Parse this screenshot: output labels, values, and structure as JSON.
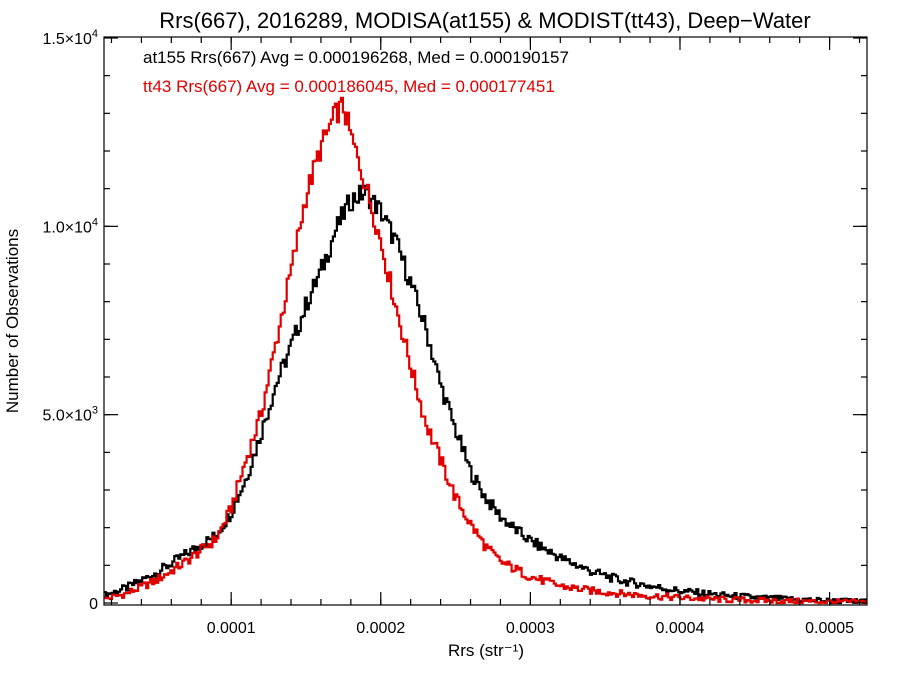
{
  "chart_data": {
    "type": "line",
    "title": "Rrs(667), 2016289, MODISA(at155) & MODIST(tt43), Deep−Water",
    "xlabel": "Rrs (str⁻¹)",
    "ylabel": "Number of Observations",
    "xlim": [
      1.5e-05,
      0.000525
    ],
    "ylim": [
      0,
      15000
    ],
    "x_ticks": [
      0.0001,
      0.0002,
      0.0003,
      0.0004,
      0.0005
    ],
    "x_tick_labels": [
      "0.0001",
      "0.0002",
      "0.0003",
      "0.0004",
      "0.0005"
    ],
    "y_ticks": [
      0,
      5000,
      10000,
      15000
    ],
    "y_tick_labels": [
      {
        "mantissa": "0",
        "exp": ""
      },
      {
        "mantissa": "5.0×10",
        "exp": "3"
      },
      {
        "mantissa": "1.0×10",
        "exp": "4"
      },
      {
        "mantissa": "1.5×10",
        "exp": "4"
      }
    ],
    "grid": false,
    "series": [
      {
        "name": "at155",
        "label": "at155 Rrs(667) Avg = 0.000196268, Med = 0.000190157",
        "color": "#000000",
        "x": [
          1.5e-05,
          3e-05,
          5e-05,
          7e-05,
          9e-05,
          0.0001,
          0.00011,
          0.00012,
          0.00013,
          0.00014,
          0.00015,
          0.00016,
          0.00017,
          0.00018,
          0.00019,
          0.0002,
          0.00021,
          0.00022,
          0.00023,
          0.00024,
          0.00025,
          0.00026,
          0.00027,
          0.00028,
          0.00029,
          0.0003,
          0.00032,
          0.00034,
          0.00036,
          0.00038,
          0.0004,
          0.00043,
          0.00046,
          0.0005,
          0.000525
        ],
        "y": [
          200,
          400,
          800,
          1300,
          1800,
          2400,
          3300,
          4500,
          5800,
          6800,
          7900,
          8800,
          9900,
          10700,
          10900,
          10400,
          9600,
          8500,
          7300,
          5800,
          4600,
          3500,
          2800,
          2300,
          1950,
          1650,
          1200,
          850,
          600,
          450,
          320,
          200,
          120,
          60,
          30
        ]
      },
      {
        "name": "tt43",
        "label": "tt43 Rrs(667) Avg = 0.000186045, Med = 0.000177451",
        "color": "#e00000",
        "x": [
          1.5e-05,
          3e-05,
          5e-05,
          7e-05,
          9e-05,
          0.0001,
          0.00011,
          0.00012,
          0.00013,
          0.00014,
          0.00015,
          0.00016,
          0.00017,
          0.000175,
          0.00018,
          0.00019,
          0.0002,
          0.00021,
          0.00022,
          0.00023,
          0.00024,
          0.00025,
          0.00026,
          0.00027,
          0.00028,
          0.0003,
          0.00032,
          0.00034,
          0.00036,
          0.00038,
          0.0004,
          0.00043,
          0.00046,
          0.0005,
          0.000525
        ],
        "y": [
          100,
          250,
          600,
          1100,
          1700,
          2500,
          3800,
          5000,
          6900,
          8800,
          10800,
          12100,
          13000,
          13200,
          12400,
          11100,
          9600,
          7900,
          6300,
          4800,
          3800,
          2800,
          2100,
          1500,
          1100,
          700,
          450,
          330,
          250,
          190,
          140,
          90,
          60,
          30,
          20
        ]
      }
    ]
  }
}
